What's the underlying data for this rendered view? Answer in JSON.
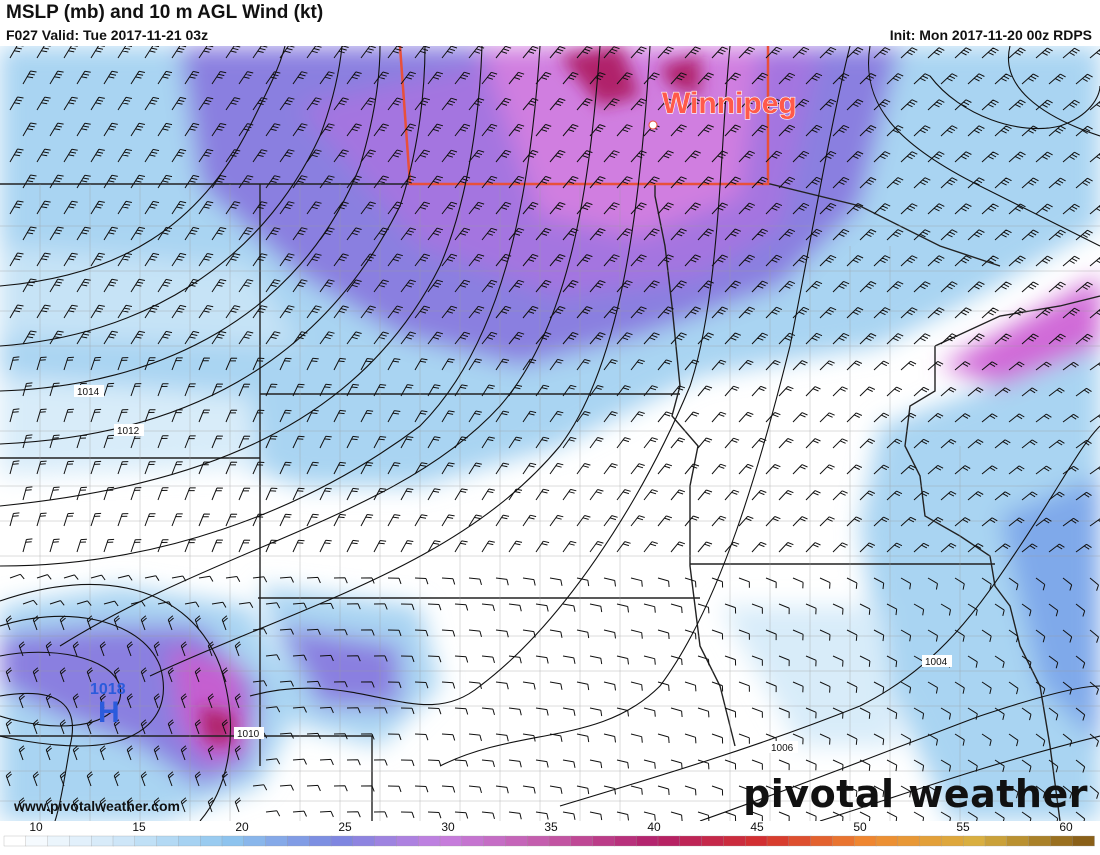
{
  "header": {
    "title": "MSLP (mb) and 10 m AGL Wind (kt)",
    "valid": "F027 Valid: Tue 2017-11-21 03z",
    "init": "Init: Mon 2017-11-20 00z RDPS"
  },
  "map": {
    "city_label": "Winnipeg",
    "high_label": "H",
    "high_value": "1018",
    "isobar_labels": [
      "1014",
      "1012",
      "1010",
      "1006",
      "1004"
    ],
    "highlight_box_color": "#e8503a",
    "high_color": "#2b5bdc"
  },
  "legend": {
    "ticks": [
      "10",
      "15",
      "20",
      "25",
      "30",
      "35",
      "40",
      "45",
      "50",
      "55",
      "60"
    ],
    "range": [
      10,
      60
    ]
  },
  "footer": {
    "website": "www.pivotalweather.com",
    "brand": "pivotal weather"
  }
}
